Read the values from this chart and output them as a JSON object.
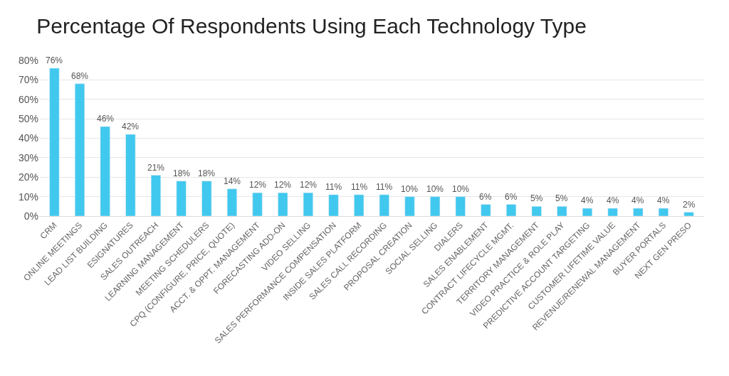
{
  "chart_data": {
    "type": "bar",
    "title": "Percentage Of Respondents Using Each Technology Type",
    "categories": [
      "CRM",
      "ONLINE MEETINGS",
      "LEAD LIST BUILDING",
      "ESIGNATURES",
      "SALES OUTREACH",
      "LEARNING MANAGEMENT",
      "MEETING SCHEDULERS",
      "CPQ (CONFIGURE, PRICE, QUOTE)",
      "ACCT. & OPPT. MANAGEMENT",
      "FORECASTING ADD-ON",
      "VIDEO SELLING",
      "SALES PERFORMANCE COMPENSATION",
      "INSIDE SALES PLATFORM",
      "SALES CALL RECORDING",
      "PROPOSAL CREATION",
      "SOCIAL SELLING",
      "DIALERS",
      "SALES ENABLEMENT",
      "CONTRACT LIFECYCLE MGMT.",
      "TERRITORY MANAGEMENT",
      "VIDEO PRACTICE & ROLE PLAY",
      "PREDICTIVE ACCOUNT TARGETING",
      "CUSTOMER LIFETIME VALUE",
      "REVENUE/RENEWAL MANAGEMENT",
      "BUYER PORTALS",
      "NEXT GEN PRESO"
    ],
    "values": [
      76,
      68,
      46,
      42,
      21,
      18,
      18,
      14,
      12,
      12,
      12,
      11,
      11,
      11,
      10,
      10,
      10,
      6,
      6,
      5,
      5,
      4,
      4,
      4,
      4,
      2
    ],
    "value_labels": [
      "76%",
      "68%",
      "46%",
      "42%",
      "21%",
      "18%",
      "18%",
      "14%",
      "12%",
      "12%",
      "12%",
      "11%",
      "11%",
      "11%",
      "10%",
      "10%",
      "10%",
      "6%",
      "6%",
      "5%",
      "5%",
      "4%",
      "4%",
      "4%",
      "4%",
      "2%"
    ],
    "color": "#41c8ee",
    "ylim": [
      0,
      80
    ],
    "yticks": [
      {
        "value": 0,
        "label": "0%"
      },
      {
        "value": 10,
        "label": "10%"
      },
      {
        "value": 20,
        "label": "20%"
      },
      {
        "value": 30,
        "label": "30%"
      },
      {
        "value": 40,
        "label": "40%"
      },
      {
        "value": 50,
        "label": "50%"
      },
      {
        "value": 60,
        "label": "60%"
      },
      {
        "value": 70,
        "label": "70%"
      },
      {
        "value": 80,
        "label": "80%"
      }
    ],
    "grid": "y",
    "legend": false
  }
}
